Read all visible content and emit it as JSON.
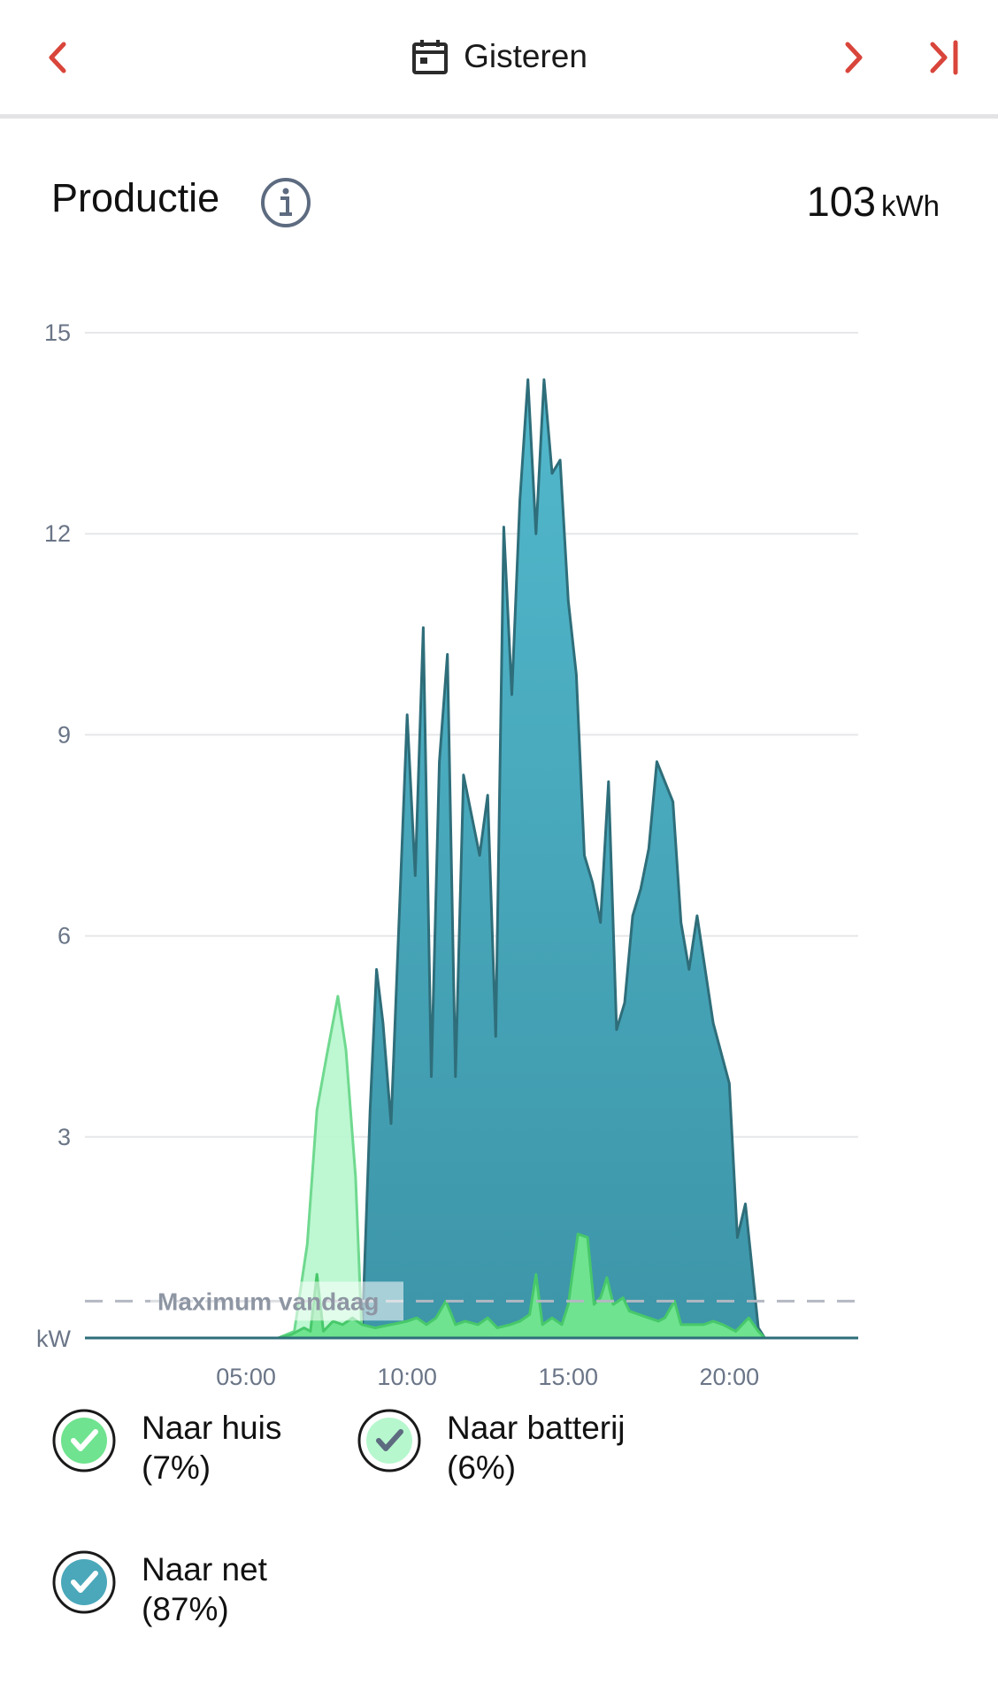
{
  "header": {
    "date_label": "Gisteren"
  },
  "production": {
    "title": "Productie",
    "total_value": "103",
    "total_unit": "kWh"
  },
  "legend": [
    {
      "label": "Naar huis",
      "percent": "(7%)",
      "color": "#6fe38f",
      "check_color": "#ffffff"
    },
    {
      "label": "Naar batterij",
      "percent": "(6%)",
      "color": "#b7f7ce",
      "check_color": "#5d6b80"
    },
    {
      "label": "Naar net",
      "percent": "(87%)",
      "color": "#4aa8ba",
      "check_color": "#ffffff"
    }
  ],
  "colors": {
    "accent": "#d9453b",
    "grid": "#e6e7ea",
    "axis_text": "#6a7587",
    "net_fill_top": "#52b8cc",
    "net_fill_bottom": "#3d95a8",
    "net_stroke": "#2e6e7a"
  },
  "chart_data": {
    "type": "area",
    "y_unit_label": "kW",
    "ylim": [
      0,
      15
    ],
    "y_ticks": [
      3,
      6,
      9,
      12,
      15
    ],
    "xlim": [
      0,
      24
    ],
    "x_ticks": [
      5,
      10,
      15,
      20
    ],
    "x_tick_labels": [
      "05:00",
      "10:00",
      "15:00",
      "20:00"
    ],
    "grid": true,
    "max_line": {
      "label": "Maximum vandaag",
      "value": 0.55
    },
    "series": [
      {
        "name": "Naar net",
        "points": [
          [
            0,
            0
          ],
          [
            8.6,
            0
          ],
          [
            8.85,
            3.4
          ],
          [
            9.05,
            5.5
          ],
          [
            9.25,
            4.7
          ],
          [
            9.5,
            3.2
          ],
          [
            10.0,
            9.3
          ],
          [
            10.25,
            6.9
          ],
          [
            10.5,
            10.6
          ],
          [
            10.75,
            3.9
          ],
          [
            11.0,
            8.6
          ],
          [
            11.25,
            10.2
          ],
          [
            11.5,
            3.9
          ],
          [
            11.75,
            8.4
          ],
          [
            12.25,
            7.2
          ],
          [
            12.5,
            8.1
          ],
          [
            12.75,
            4.5
          ],
          [
            13.0,
            12.1
          ],
          [
            13.25,
            9.6
          ],
          [
            13.5,
            12.5
          ],
          [
            13.75,
            14.3
          ],
          [
            14.0,
            12.0
          ],
          [
            14.25,
            14.3
          ],
          [
            14.5,
            12.9
          ],
          [
            14.75,
            13.1
          ],
          [
            15.0,
            11.0
          ],
          [
            15.25,
            9.9
          ],
          [
            15.5,
            7.2
          ],
          [
            15.75,
            6.8
          ],
          [
            16.0,
            6.2
          ],
          [
            16.25,
            8.3
          ],
          [
            16.5,
            4.6
          ],
          [
            16.75,
            5.0
          ],
          [
            17.0,
            6.3
          ],
          [
            17.25,
            6.7
          ],
          [
            17.5,
            7.3
          ],
          [
            17.75,
            8.6
          ],
          [
            18.0,
            8.3
          ],
          [
            18.25,
            8.0
          ],
          [
            18.5,
            6.2
          ],
          [
            18.75,
            5.5
          ],
          [
            19.0,
            6.3
          ],
          [
            19.5,
            4.7
          ],
          [
            20.0,
            3.8
          ],
          [
            20.25,
            1.5
          ],
          [
            20.5,
            2.0
          ],
          [
            20.9,
            0.15
          ],
          [
            21.1,
            0
          ],
          [
            24,
            0
          ]
        ]
      },
      {
        "name": "Naar batterij",
        "points": [
          [
            0,
            0
          ],
          [
            6.0,
            0
          ],
          [
            6.5,
            0.1
          ],
          [
            6.9,
            1.4
          ],
          [
            7.2,
            3.4
          ],
          [
            7.5,
            4.2
          ],
          [
            7.85,
            5.1
          ],
          [
            8.1,
            4.3
          ],
          [
            8.4,
            2.4
          ],
          [
            8.6,
            0
          ],
          [
            24,
            0
          ]
        ]
      },
      {
        "name": "Naar huis",
        "points": [
          [
            0,
            0
          ],
          [
            6.0,
            0
          ],
          [
            6.4,
            0.05
          ],
          [
            6.8,
            0.15
          ],
          [
            7.0,
            0.1
          ],
          [
            7.2,
            0.95
          ],
          [
            7.4,
            0.1
          ],
          [
            7.7,
            0.25
          ],
          [
            8.0,
            0.2
          ],
          [
            8.3,
            0.3
          ],
          [
            8.6,
            0.2
          ],
          [
            9.0,
            0.15
          ],
          [
            9.5,
            0.2
          ],
          [
            10.0,
            0.25
          ],
          [
            10.3,
            0.3
          ],
          [
            10.6,
            0.2
          ],
          [
            10.9,
            0.3
          ],
          [
            11.2,
            0.55
          ],
          [
            11.5,
            0.2
          ],
          [
            11.8,
            0.25
          ],
          [
            12.2,
            0.2
          ],
          [
            12.5,
            0.3
          ],
          [
            12.8,
            0.15
          ],
          [
            13.2,
            0.2
          ],
          [
            13.5,
            0.25
          ],
          [
            13.8,
            0.35
          ],
          [
            14.0,
            0.95
          ],
          [
            14.2,
            0.2
          ],
          [
            14.5,
            0.3
          ],
          [
            14.8,
            0.2
          ],
          [
            15.0,
            0.5
          ],
          [
            15.3,
            1.55
          ],
          [
            15.6,
            1.5
          ],
          [
            15.8,
            0.5
          ],
          [
            16.0,
            0.6
          ],
          [
            16.2,
            0.9
          ],
          [
            16.4,
            0.5
          ],
          [
            16.7,
            0.6
          ],
          [
            16.9,
            0.4
          ],
          [
            17.2,
            0.35
          ],
          [
            17.5,
            0.3
          ],
          [
            17.8,
            0.25
          ],
          [
            18.0,
            0.3
          ],
          [
            18.3,
            0.55
          ],
          [
            18.5,
            0.2
          ],
          [
            18.8,
            0.2
          ],
          [
            19.2,
            0.2
          ],
          [
            19.5,
            0.25
          ],
          [
            19.8,
            0.2
          ],
          [
            20.2,
            0.1
          ],
          [
            20.6,
            0.3
          ],
          [
            20.9,
            0.1
          ],
          [
            21.1,
            0
          ],
          [
            24,
            0
          ]
        ]
      }
    ]
  }
}
